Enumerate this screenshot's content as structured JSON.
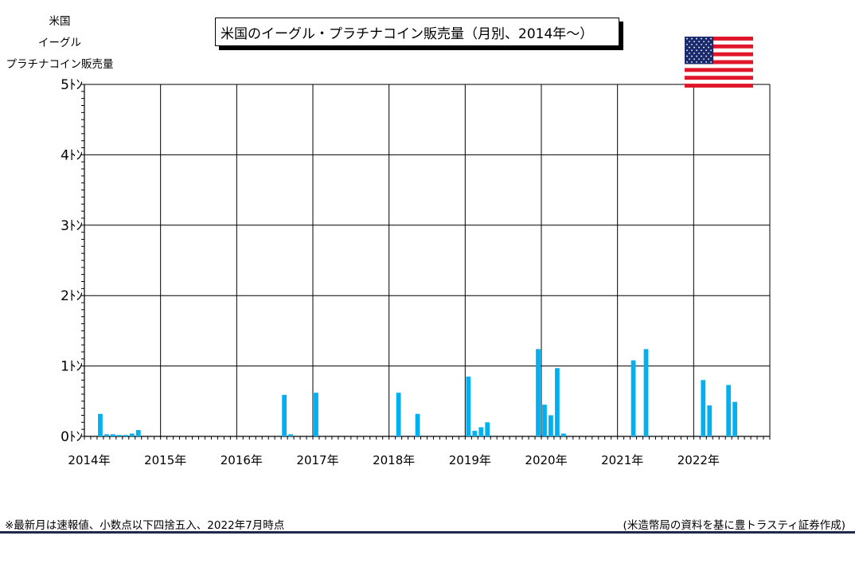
{
  "chart_data": {
    "type": "bar",
    "title": "米国のイーグル・プラチナコイン販売量（月別、2014年～）",
    "ylabel": [
      "米国",
      "イーグル",
      "プラチナコイン販売量"
    ],
    "ylim": [
      0,
      5
    ],
    "y_ticks": [
      {
        "value": 0,
        "label": "0ﾄﾝ"
      },
      {
        "value": 1,
        "label": "1ﾄﾝ"
      },
      {
        "value": 2,
        "label": "2ﾄﾝ"
      },
      {
        "value": 3,
        "label": "3ﾄﾝ"
      },
      {
        "value": 4,
        "label": "4ﾄﾝ"
      },
      {
        "value": 5,
        "label": "5ﾄﾝ"
      }
    ],
    "x_start_year": 2014,
    "x_end_year": 2023,
    "x_ticks": [
      "2014年",
      "2015年",
      "2016年",
      "2017年",
      "2018年",
      "2019年",
      "2020年",
      "2021年",
      "2022年"
    ],
    "grid": true,
    "bar_color": "#00b0f0",
    "series": [
      {
        "values": [
          {
            "x": "2014-03",
            "y": 0.32
          },
          {
            "x": "2014-04",
            "y": 0.03
          },
          {
            "x": "2014-05",
            "y": 0.03
          },
          {
            "x": "2014-06",
            "y": 0.02
          },
          {
            "x": "2014-07",
            "y": 0.02
          },
          {
            "x": "2014-08",
            "y": 0.04
          },
          {
            "x": "2014-09",
            "y": 0.09
          },
          {
            "x": "2016-08",
            "y": 0.59
          },
          {
            "x": "2016-09",
            "y": 0.03
          },
          {
            "x": "2017-01",
            "y": 0.62
          },
          {
            "x": "2018-02",
            "y": 0.62
          },
          {
            "x": "2018-05",
            "y": 0.32
          },
          {
            "x": "2019-01",
            "y": 0.85
          },
          {
            "x": "2019-02",
            "y": 0.08
          },
          {
            "x": "2019-03",
            "y": 0.13
          },
          {
            "x": "2019-04",
            "y": 0.2
          },
          {
            "x": "2019-12",
            "y": 1.24
          },
          {
            "x": "2020-01",
            "y": 0.45
          },
          {
            "x": "2020-02",
            "y": 0.3
          },
          {
            "x": "2020-03",
            "y": 0.97
          },
          {
            "x": "2020-04",
            "y": 0.04
          },
          {
            "x": "2021-03",
            "y": 1.08
          },
          {
            "x": "2021-05",
            "y": 1.24
          },
          {
            "x": "2022-02",
            "y": 0.8
          },
          {
            "x": "2022-03",
            "y": 0.44
          },
          {
            "x": "2022-06",
            "y": 0.73
          },
          {
            "x": "2022-07",
            "y": 0.49
          }
        ]
      }
    ]
  },
  "footnote": "※最新月は速報値、小数点以下四捨五入、2022年7月時点",
  "source": "(米造幣局の資料を基に豊トラスティ証券作成)",
  "flag": {
    "icon": "us-flag-icon",
    "red": "#e0162b",
    "blue": "#1a2a6c",
    "white": "#ffffff"
  },
  "colors": {
    "grid": "#000000",
    "axis": "#000000",
    "bottom_rule": "#1f2a4a"
  }
}
